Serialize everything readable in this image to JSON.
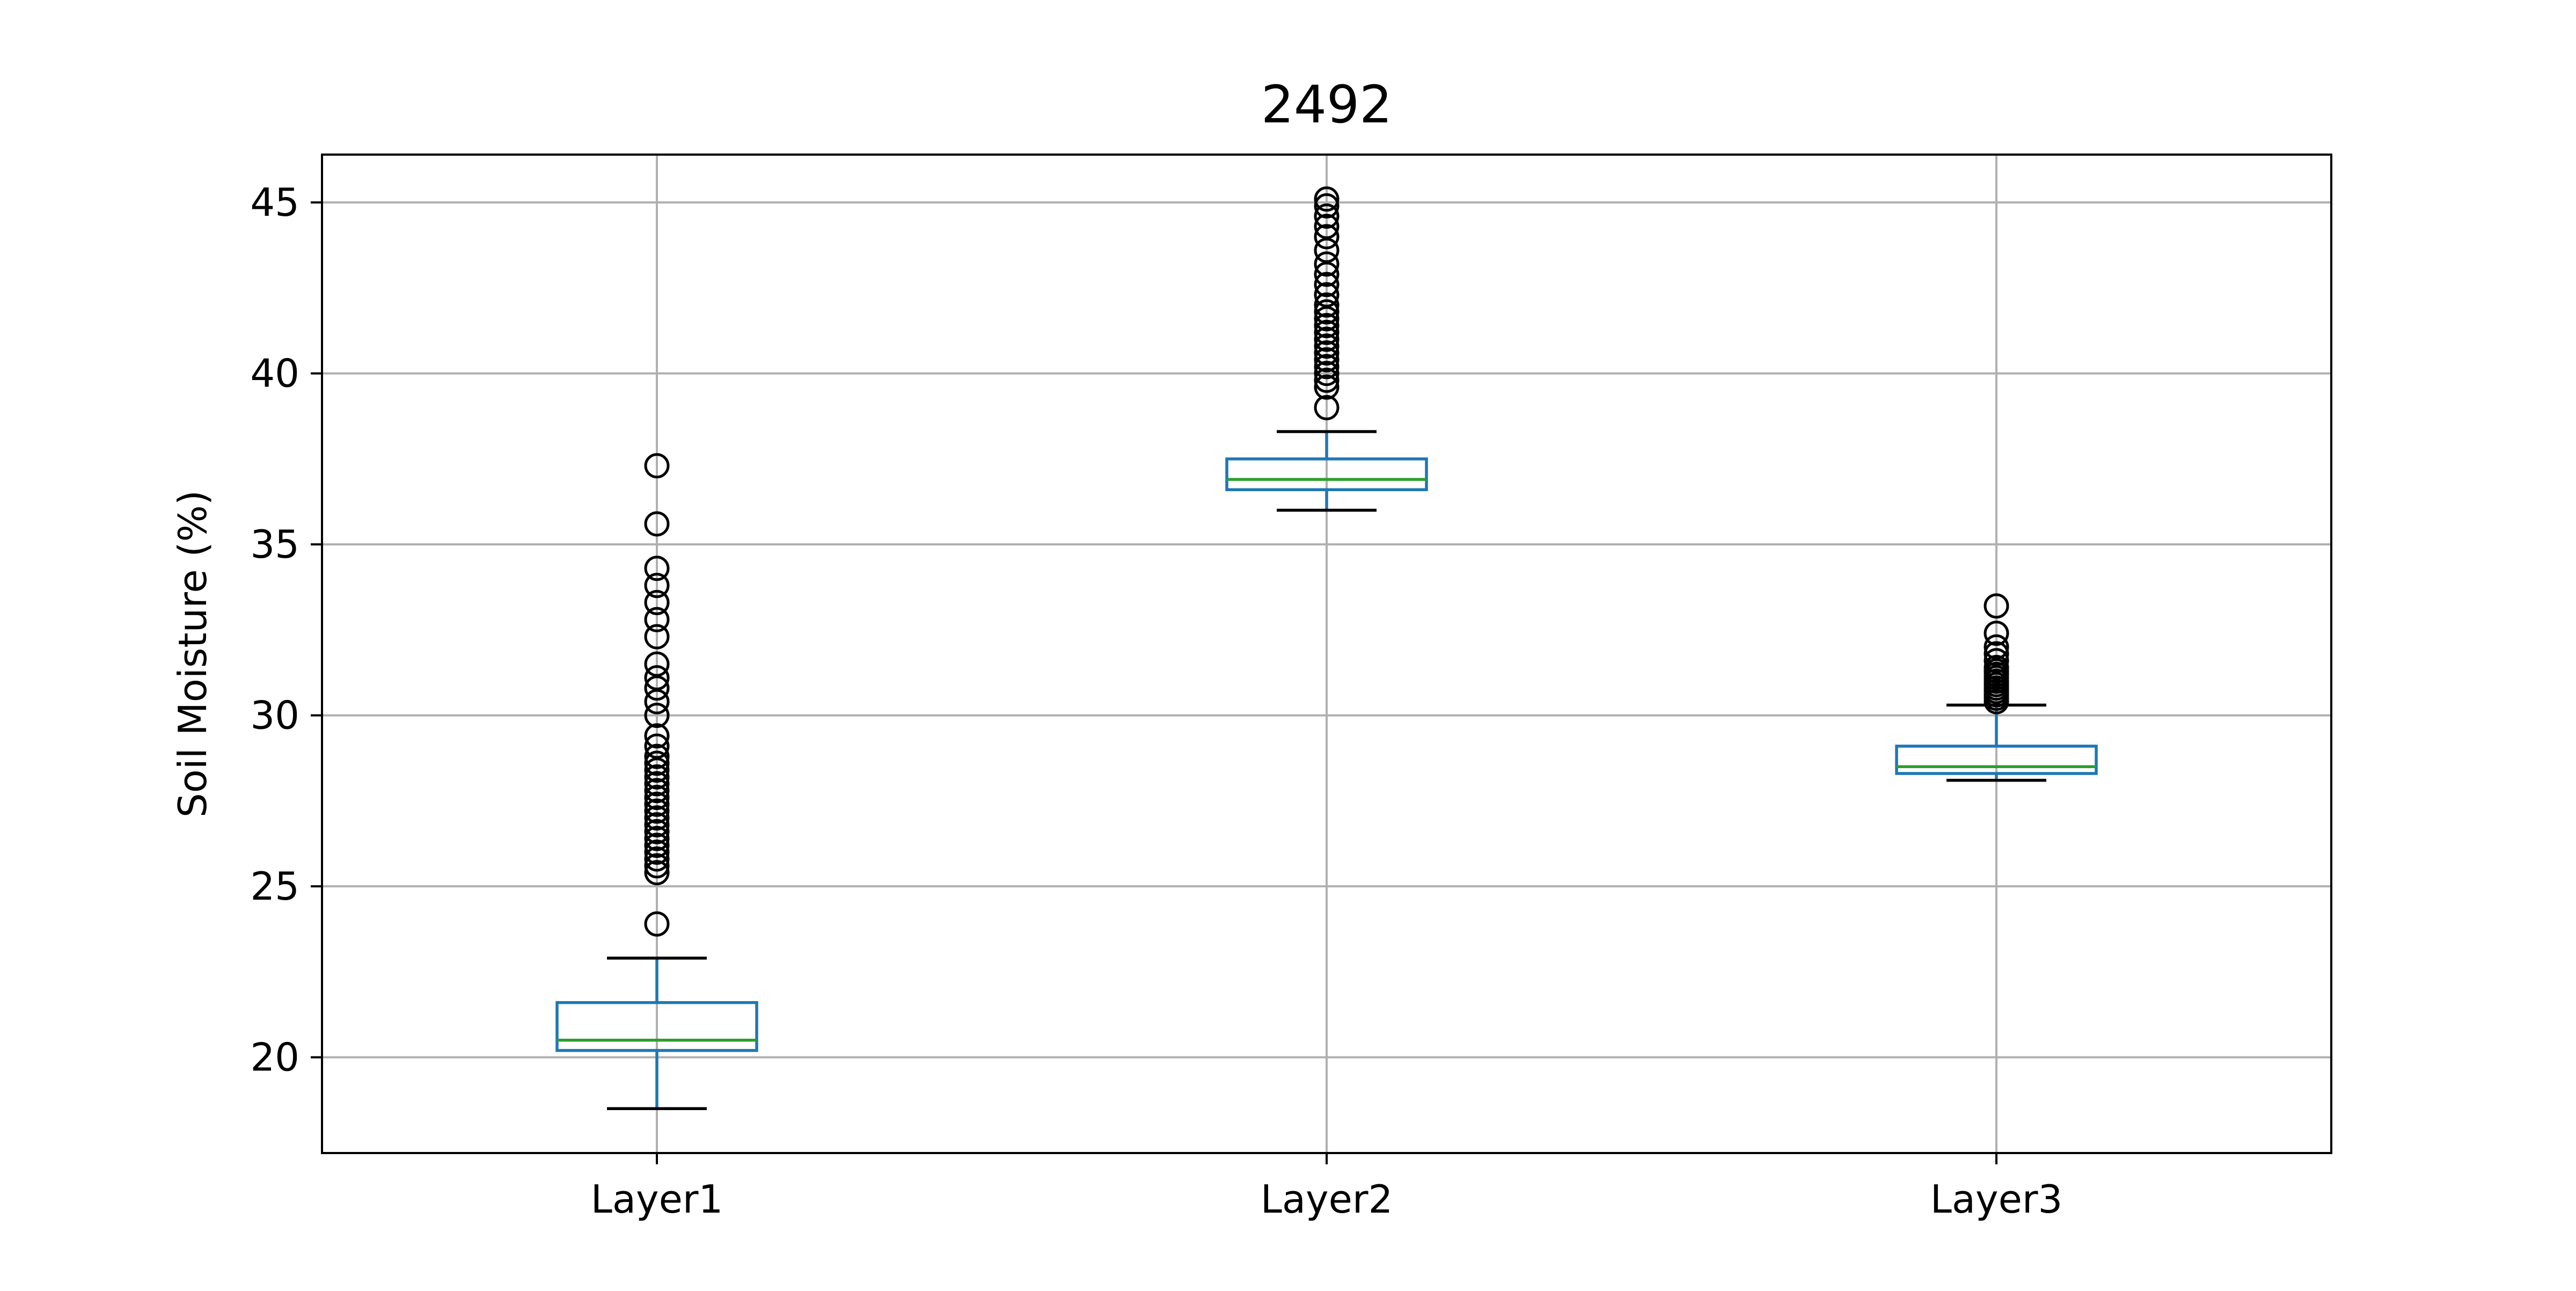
{
  "chart_data": {
    "type": "box",
    "title": "2492",
    "xlabel": "",
    "ylabel": "Soil Moisture (%)",
    "ylim": [
      17.2,
      46.4
    ],
    "yticks": [
      20,
      25,
      30,
      35,
      40,
      45
    ],
    "grid": true,
    "categories": [
      "Layer1",
      "Layer2",
      "Layer3"
    ],
    "boxes": [
      {
        "name": "Layer1",
        "whisker_low": 18.5,
        "q1": 20.2,
        "median": 20.5,
        "q3": 21.6,
        "whisker_high": 22.9,
        "outliers": [
          23.9,
          25.4,
          25.6,
          25.8,
          26.0,
          26.2,
          26.4,
          26.6,
          26.8,
          27.0,
          27.2,
          27.4,
          27.6,
          27.8,
          28.0,
          28.2,
          28.4,
          28.6,
          28.8,
          29.1,
          29.4,
          30.0,
          30.4,
          30.8,
          31.1,
          31.5,
          32.3,
          32.8,
          33.3,
          33.8,
          34.3,
          35.6,
          37.3
        ]
      },
      {
        "name": "Layer2",
        "whisker_low": 36.0,
        "q1": 36.6,
        "median": 36.9,
        "q3": 37.5,
        "whisker_high": 38.3,
        "outliers": [
          39.0,
          39.6,
          39.8,
          40.0,
          40.2,
          40.4,
          40.6,
          40.8,
          41.0,
          41.2,
          41.4,
          41.6,
          41.8,
          42.0,
          42.3,
          42.6,
          42.9,
          43.2,
          43.6,
          44.0,
          44.3,
          44.6,
          44.9,
          45.1
        ]
      },
      {
        "name": "Layer3",
        "whisker_low": 28.1,
        "q1": 28.3,
        "median": 28.5,
        "q3": 29.1,
        "whisker_high": 30.3,
        "outliers": [
          30.4,
          30.5,
          30.6,
          30.7,
          30.8,
          30.9,
          31.0,
          31.1,
          31.2,
          31.3,
          31.4,
          31.6,
          31.8,
          32.0,
          32.4,
          33.2
        ]
      }
    ],
    "colors": {
      "box": "#1f77b4",
      "median": "#2ca02c",
      "whisker_cap": "#000000",
      "outlier": "#000000",
      "grid": "#b0b0b0"
    }
  }
}
